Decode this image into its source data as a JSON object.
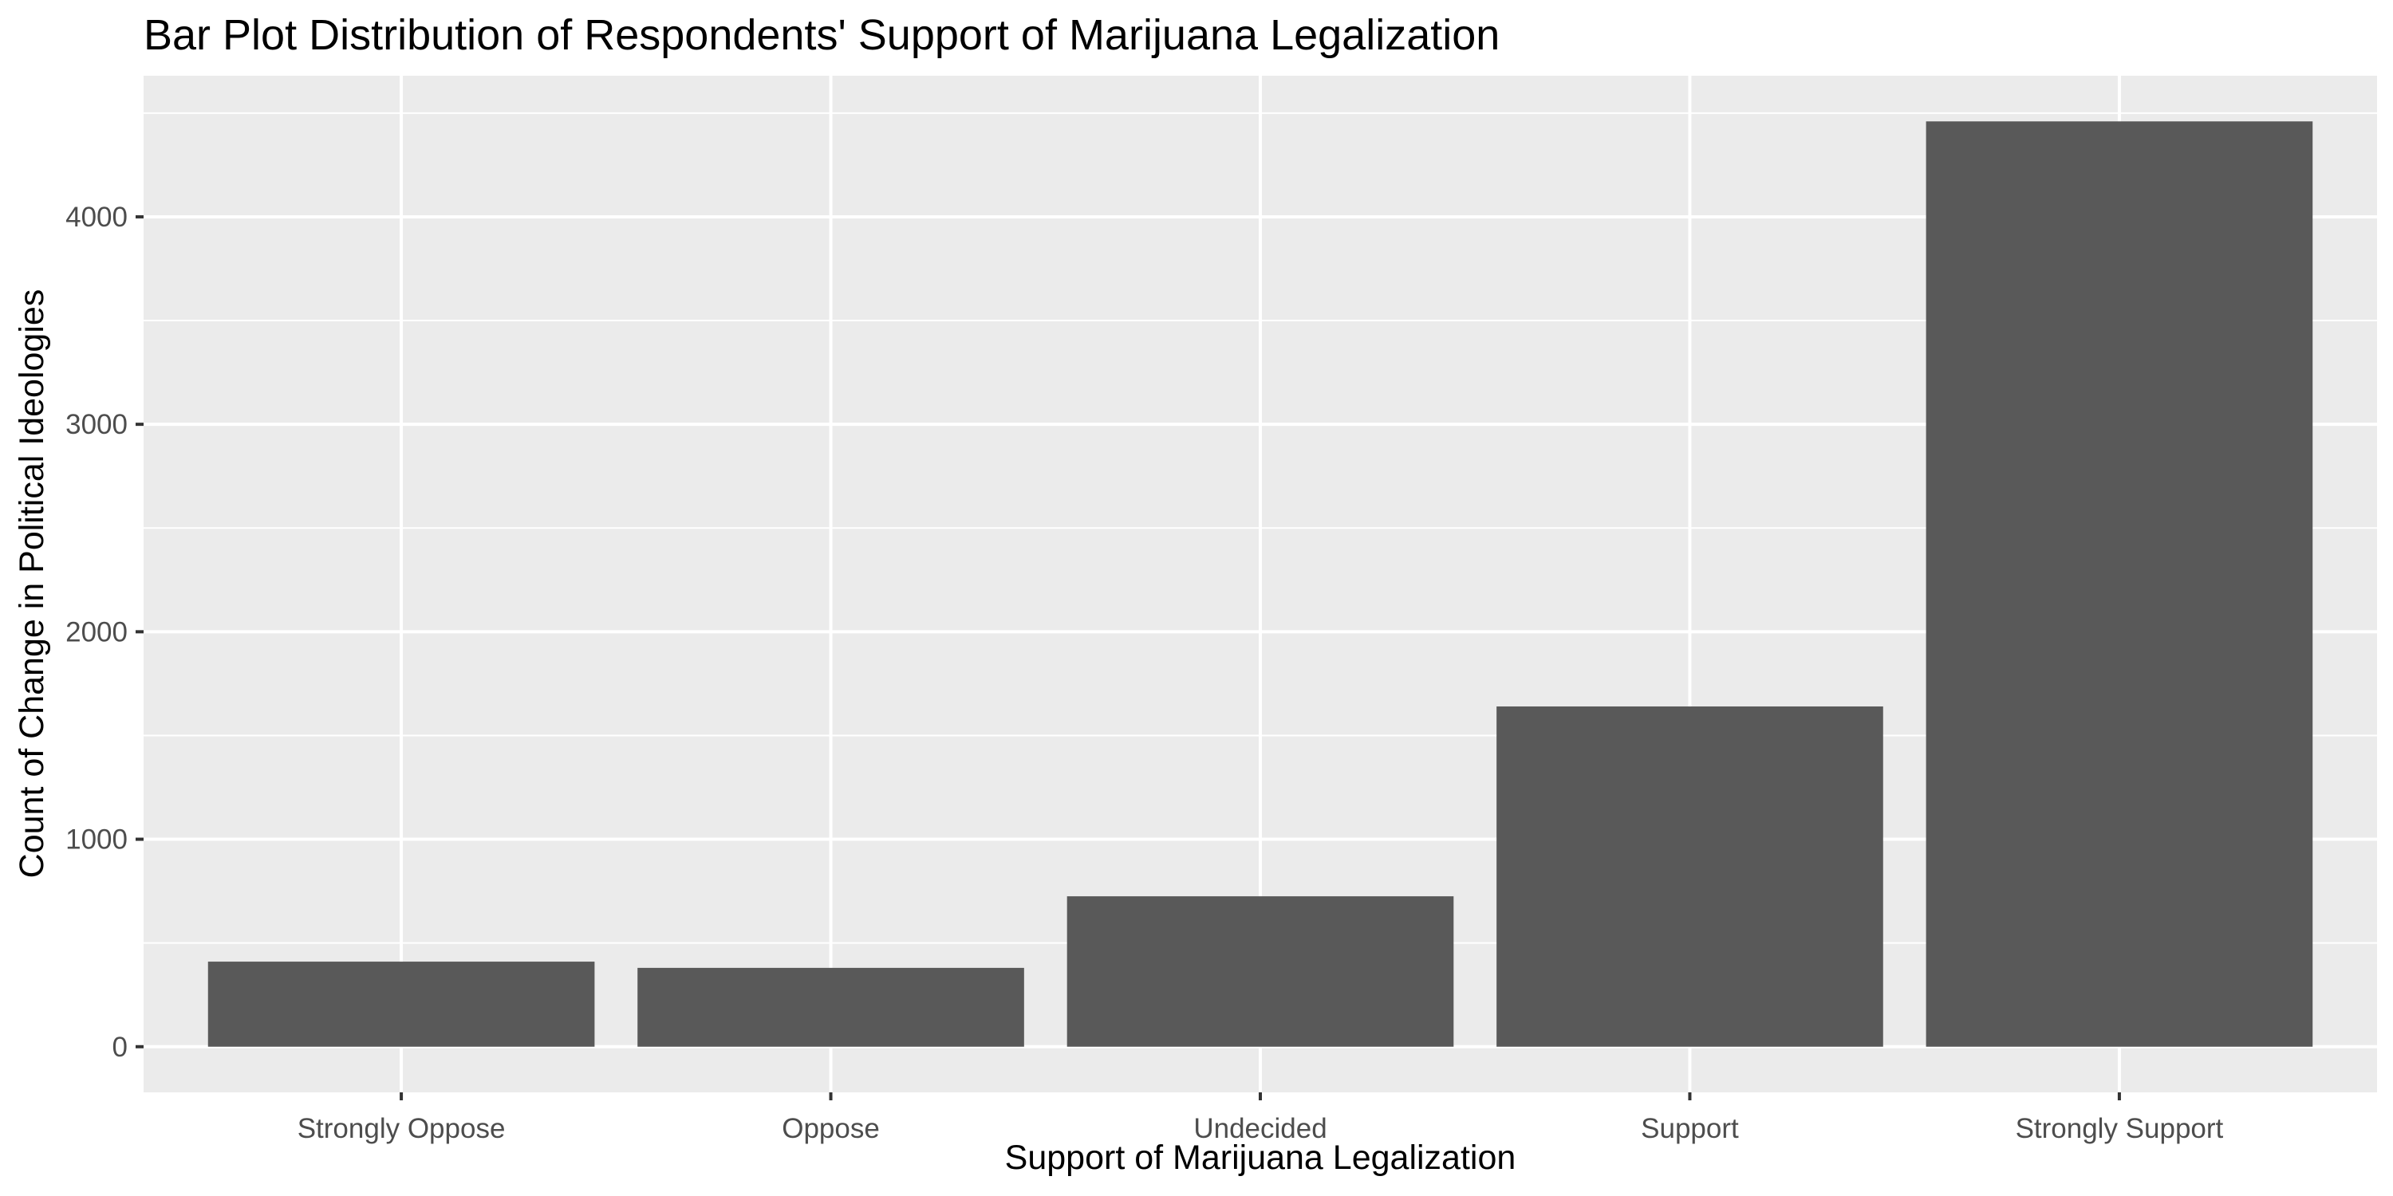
{
  "chart_data": {
    "type": "bar",
    "title": "Bar Plot Distribution of Respondents' Support of Marijuana Legalization",
    "xlabel": "Support of Marijuana Legalization",
    "ylabel": "Count of Change in Political Ideologies",
    "categories": [
      "Strongly Oppose",
      "Oppose",
      "Undecided",
      "Support",
      "Strongly Support"
    ],
    "values": [
      410,
      380,
      725,
      1640,
      4460
    ],
    "ylim": [
      -220,
      4680
    ],
    "yticks": [
      0,
      1000,
      2000,
      3000,
      4000
    ],
    "grid": true,
    "legend": "none",
    "colors": {
      "bar": "#595959",
      "panel": "#ebebeb",
      "grid": "#ffffff",
      "tick_text": "#4d4d4d",
      "tick_mark": "#333333"
    }
  }
}
